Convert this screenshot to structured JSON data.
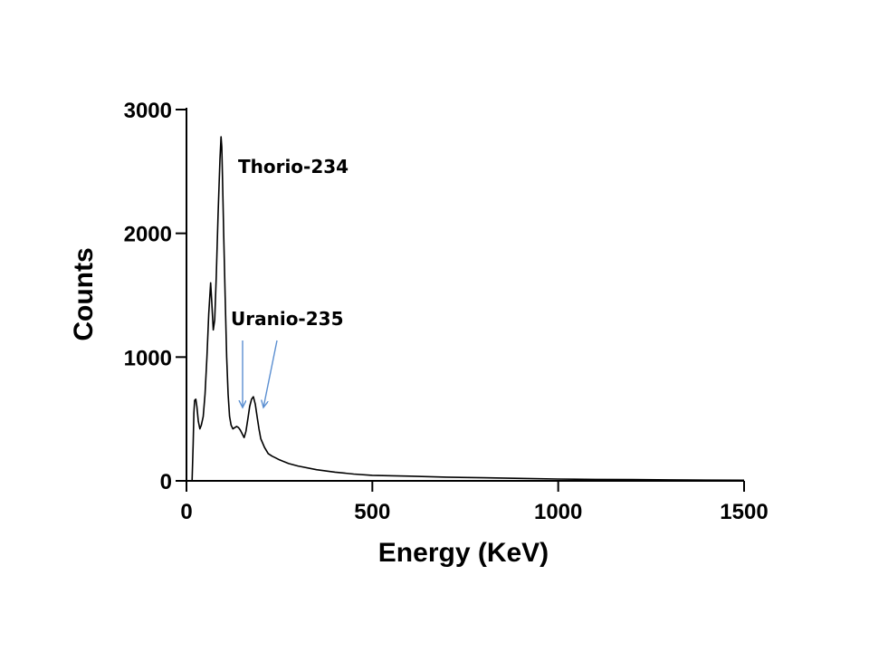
{
  "chart_data": {
    "type": "line",
    "title": "",
    "xlabel": "Energy (KeV)",
    "ylabel": "Counts",
    "xlim": [
      0,
      1500
    ],
    "ylim": [
      0,
      3000
    ],
    "xticks": [
      0,
      500,
      1000,
      1500
    ],
    "yticks": [
      0,
      1000,
      2000,
      3000
    ],
    "grid": false,
    "series": [
      {
        "name": "",
        "x": [
          15,
          18,
          20,
          22,
          25,
          28,
          32,
          36,
          40,
          45,
          50,
          55,
          60,
          65,
          68,
          72,
          76,
          80,
          85,
          90,
          93,
          95,
          97,
          100,
          104,
          108,
          112,
          116,
          120,
          125,
          130,
          135,
          140,
          145,
          150,
          155,
          160,
          165,
          170,
          175,
          180,
          185,
          190,
          195,
          200,
          210,
          220,
          230,
          240,
          250,
          275,
          300,
          350,
          400,
          450,
          500,
          600,
          700,
          800,
          900,
          1000,
          1100,
          1200,
          1300,
          1400,
          1500
        ],
        "y": [
          0,
          300,
          550,
          650,
          660,
          600,
          480,
          420,
          450,
          520,
          700,
          1000,
          1350,
          1600,
          1450,
          1220,
          1300,
          1650,
          2150,
          2600,
          2780,
          2700,
          2450,
          2000,
          1500,
          1000,
          700,
          520,
          450,
          420,
          430,
          440,
          430,
          410,
          380,
          350,
          400,
          500,
          600,
          660,
          680,
          620,
          520,
          420,
          340,
          270,
          220,
          200,
          185,
          170,
          140,
          120,
          90,
          70,
          55,
          45,
          38,
          30,
          25,
          20,
          15,
          12,
          10,
          8,
          6,
          5
        ]
      }
    ],
    "annotations": [
      {
        "text": "Thorio-234",
        "x": 90,
        "y": 2780
      },
      {
        "text": "Uranio-235",
        "x": 180,
        "y": 680
      }
    ]
  },
  "colors": {
    "series": "#000000",
    "arrows": "#5b8fd1",
    "axes": "#000000"
  }
}
